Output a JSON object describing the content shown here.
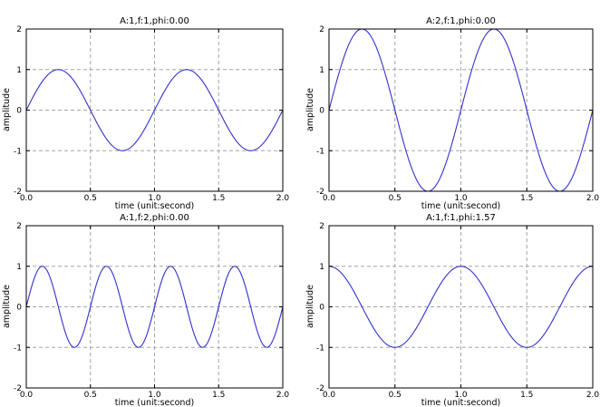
{
  "colors": {
    "line": "#3232cd",
    "grid": "#a6a6a6",
    "axis": "#000000",
    "background": "#ffffff",
    "text": "#000000"
  },
  "chart_data": [
    {
      "type": "line",
      "title": "A:1,f:1,phi:0.00",
      "xlabel": "time (unit:second)",
      "ylabel": "amplitude",
      "xlim": [
        0,
        2
      ],
      "ylim": [
        -2,
        2
      ],
      "xticks": [
        "0.0",
        "0.5",
        "1.0",
        "1.5",
        "2.0"
      ],
      "yticks": [
        "-2",
        "-1",
        "0",
        "1",
        "2"
      ],
      "grid": true,
      "legend": false,
      "function": "y = A * sin(2*pi*f*t + phi)",
      "params": {
        "A": 1,
        "f": 1,
        "phi": 0.0
      },
      "t_range": [
        0,
        2
      ]
    },
    {
      "type": "line",
      "title": "A:2,f:1,phi:0.00",
      "xlabel": "time (unit:second)",
      "ylabel": "amplitude",
      "xlim": [
        0,
        2
      ],
      "ylim": [
        -2,
        2
      ],
      "xticks": [
        "0.0",
        "0.5",
        "1.0",
        "1.5",
        "2.0"
      ],
      "yticks": [
        "-2",
        "-1",
        "0",
        "1",
        "2"
      ],
      "grid": true,
      "legend": false,
      "function": "y = A * sin(2*pi*f*t + phi)",
      "params": {
        "A": 2,
        "f": 1,
        "phi": 0.0
      },
      "t_range": [
        0,
        2
      ]
    },
    {
      "type": "line",
      "title": "A:1,f:2,phi:0.00",
      "xlabel": "time (unit:second)",
      "ylabel": "amplitude",
      "xlim": [
        0,
        2
      ],
      "ylim": [
        -2,
        2
      ],
      "xticks": [
        "0.0",
        "0.5",
        "1.0",
        "1.5",
        "2.0"
      ],
      "yticks": [
        "-2",
        "-1",
        "0",
        "1",
        "2"
      ],
      "grid": true,
      "legend": false,
      "function": "y = A * sin(2*pi*f*t + phi)",
      "params": {
        "A": 1,
        "f": 2,
        "phi": 0.0
      },
      "t_range": [
        0,
        2
      ]
    },
    {
      "type": "line",
      "title": "A:1,f:1,phi:1.57",
      "xlabel": "time (unit:second)",
      "ylabel": "amplitude",
      "xlim": [
        0,
        2
      ],
      "ylim": [
        -2,
        2
      ],
      "xticks": [
        "0.0",
        "0.5",
        "1.0",
        "1.5",
        "2.0"
      ],
      "yticks": [
        "-2",
        "-1",
        "0",
        "1",
        "2"
      ],
      "grid": true,
      "legend": false,
      "function": "y = A * sin(2*pi*f*t + phi)",
      "params": {
        "A": 1,
        "f": 1,
        "phi": 1.57
      },
      "t_range": [
        0,
        2
      ]
    }
  ]
}
